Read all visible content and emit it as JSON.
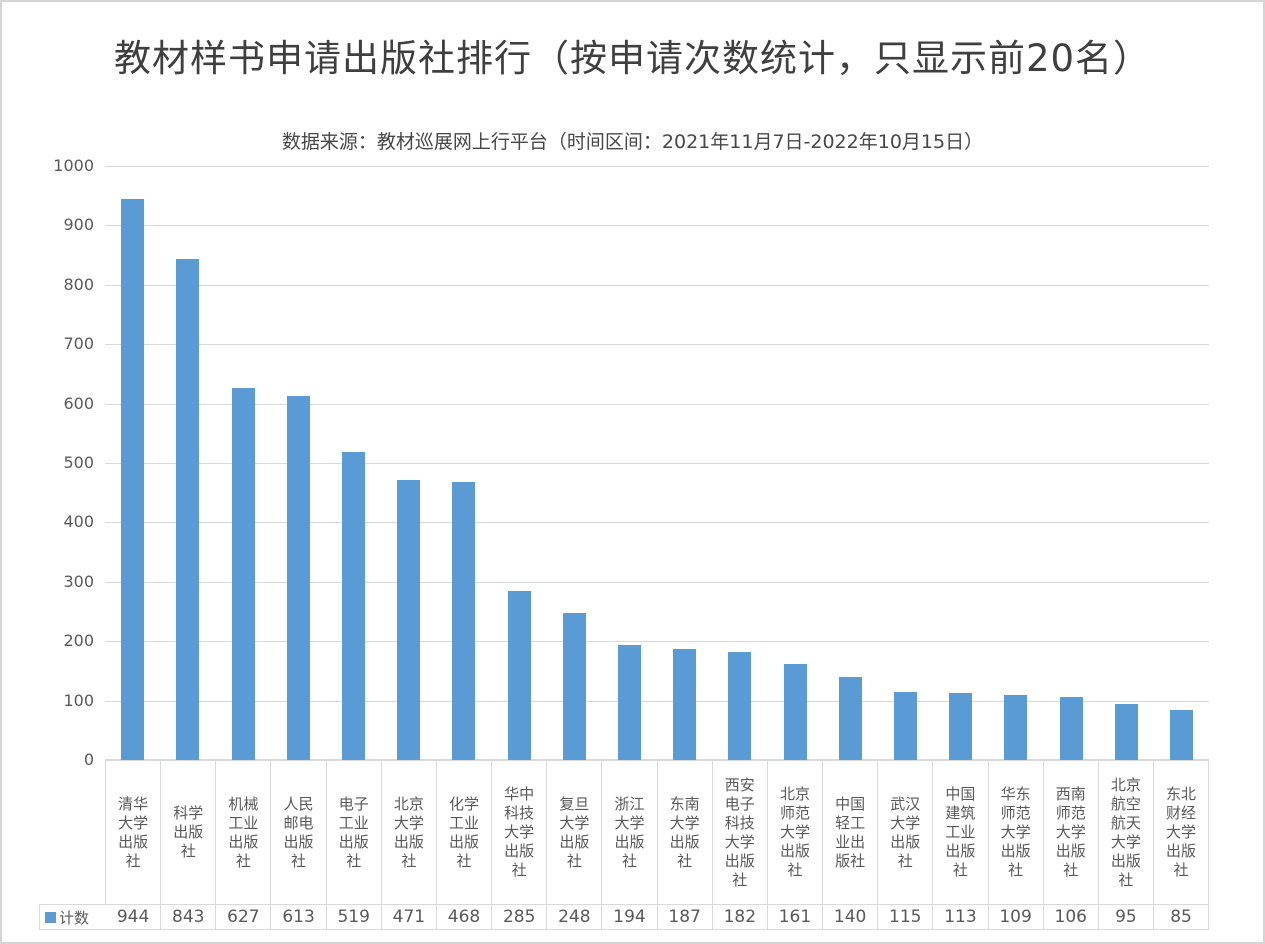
{
  "page": {
    "background": "#ffffff",
    "frame_border_color": "#d5d5d5"
  },
  "header": {
    "title": "教材样书申请出版社排行（按申请次数统计，只显示前20名）",
    "subtitle": "数据来源：教材巡展网上行平台（时间区间：2021年11月7日-2022年10月15日）"
  },
  "chart_data": {
    "type": "bar",
    "title": "教材样书申请出版社排行（按申请次数统计，只显示前20名）",
    "subtitle": "数据来源：教材巡展网上行平台（时间区间：2021年11月7日-2022年10月15日）",
    "legend": [
      {
        "label": "计数",
        "color": "#5B9BD5",
        "swatch": "square"
      }
    ],
    "legend_position": "bottom-data-table",
    "categories": [
      "清华大学出版社",
      "科学出版社",
      "机械工业出版社",
      "人民邮电出版社",
      "电子工业出版社",
      "北京大学出版社",
      "化学工业出版社",
      "华中科技大学出版社",
      "复旦大学出版社",
      "浙江大学出版社",
      "东南大学出版社",
      "西安电子科技大学出版社",
      "北京师范大学出版社",
      "中国轻工业出版社",
      "武汉大学出版社",
      "中国建筑工业出版社",
      "华东师范大学出版社",
      "西南师范大学出版社",
      "北京航空航天大学出版社",
      "东北财经大学出版社"
    ],
    "series": [
      {
        "name": "计数",
        "values": [
          944,
          843,
          627,
          613,
          519,
          471,
          468,
          285,
          248,
          194,
          187,
          182,
          161,
          140,
          115,
          113,
          109,
          106,
          95,
          85
        ]
      }
    ],
    "ylim": [
      0,
      1000
    ],
    "yticks": [
      0,
      100,
      200,
      300,
      400,
      500,
      600,
      700,
      800,
      900,
      1000
    ],
    "grid": true,
    "data_table_shown": true,
    "colors": {
      "bar": "#5B9BD5",
      "gridline": "#d9d9d9",
      "axis_text": "#595959",
      "table_border": "#d9d9d9",
      "title_text": "#3f3f3f",
      "subtitle_text": "#474747"
    }
  }
}
